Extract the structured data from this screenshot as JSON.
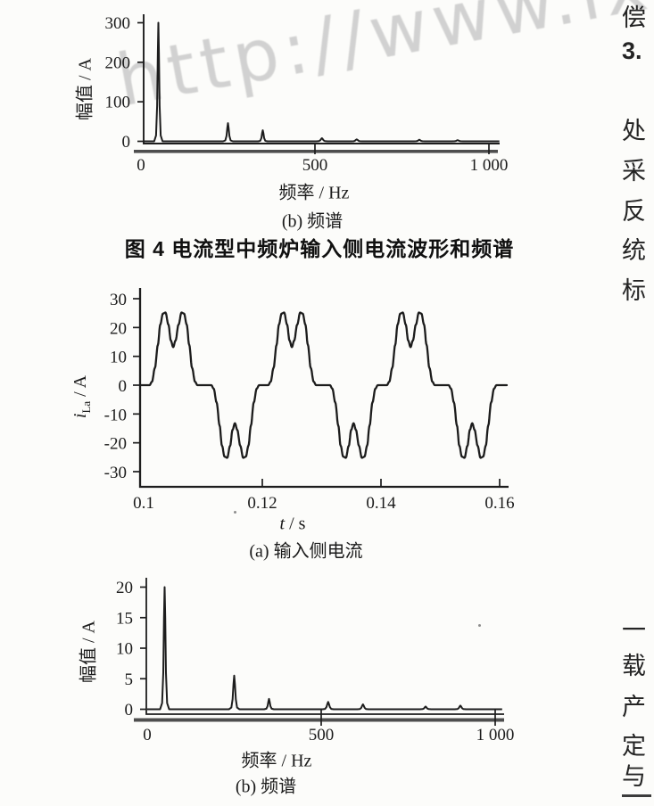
{
  "page": {
    "background": "#fcfcfa",
    "ink": "#1d1d1d"
  },
  "watermark": {
    "text": "http://www.lxu",
    "color": "#c7c7c7"
  },
  "figure4": {
    "title": "图 4  电流型中频炉输入侧电流波形和频谱"
  },
  "right_column": {
    "top_chars": [
      "偿",
      "3.",
      "处",
      "采",
      "反",
      "统",
      "标"
    ],
    "bottom_chars": [
      "一",
      "载",
      "产",
      "定",
      "与"
    ]
  },
  "chart_data": [
    {
      "name": "fig4b-input-current-spectrum",
      "type": "line",
      "subtype": "spectrum",
      "ylabel": "幅值 / A",
      "xlabel": "频率 / Hz",
      "caption": "(b)  频谱",
      "xlim": [
        0,
        1030
      ],
      "ylim": [
        0,
        310
      ],
      "x_ticks": [
        {
          "v": 0,
          "label": "0"
        },
        {
          "v": 500,
          "label": "500"
        },
        {
          "v": 1000,
          "label": "1 000"
        }
      ],
      "y_ticks": [
        {
          "v": 0,
          "label": "0"
        },
        {
          "v": 100,
          "label": "100"
        },
        {
          "v": 200,
          "label": "200"
        },
        {
          "v": 300,
          "label": "300"
        }
      ],
      "peaks": [
        {
          "freq": 50,
          "amp": 300,
          "w": 12
        },
        {
          "freq": 250,
          "amp": 46,
          "w": 14
        },
        {
          "freq": 350,
          "amp": 28,
          "w": 13
        },
        {
          "freq": 520,
          "amp": 8,
          "w": 16
        },
        {
          "freq": 620,
          "amp": 5,
          "w": 16
        },
        {
          "freq": 800,
          "amp": 4,
          "w": 16
        },
        {
          "freq": 910,
          "amp": 3,
          "w": 16
        }
      ]
    },
    {
      "name": "fig5a-input-side-current-waveform",
      "type": "line",
      "subtype": "waveform",
      "ylabel_var": "i",
      "ylabel_sub": "La",
      "ylabel_unit": " / A",
      "xlabel_var": "t",
      "xlabel_unit": " / s",
      "caption": "(a)  输入侧电流",
      "xlim": [
        0.1,
        0.1612
      ],
      "ylim": [
        -30,
        30
      ],
      "x_ticks": [
        {
          "v": 0.1,
          "label": "0.1"
        },
        {
          "v": 0.12,
          "label": "0.12"
        },
        {
          "v": 0.14,
          "label": "0.14"
        },
        {
          "v": 0.16,
          "label": "0.16"
        }
      ],
      "y_ticks": [
        {
          "v": 30,
          "label": "30"
        },
        {
          "v": 20,
          "label": "20"
        },
        {
          "v": 10,
          "label": "10"
        },
        {
          "v": 0,
          "label": "0"
        },
        {
          "v": -10,
          "label": "-10"
        },
        {
          "v": -20,
          "label": "-20"
        },
        {
          "v": -30,
          "label": "-30"
        }
      ],
      "period_s": 0.02,
      "first_lobe_start_s": 0.101,
      "num_periods": 3,
      "peak_amp_A": 25,
      "notch_amp_A": 13,
      "lobe_shape": [
        [
          0,
          0
        ],
        [
          0.02,
          1.2
        ],
        [
          0.045,
          6
        ],
        [
          0.07,
          14
        ],
        [
          0.09,
          21
        ],
        [
          0.112,
          24.8
        ],
        [
          0.134,
          25.2
        ],
        [
          0.159,
          21
        ],
        [
          0.179,
          15.5
        ],
        [
          0.199,
          13.2
        ],
        [
          0.219,
          15.5
        ],
        [
          0.244,
          21
        ],
        [
          0.269,
          25.2
        ],
        [
          0.291,
          24.8
        ],
        [
          0.313,
          21
        ],
        [
          0.334,
          14
        ],
        [
          0.358,
          6
        ],
        [
          0.383,
          1.2
        ],
        [
          0.403,
          0
        ],
        [
          0.42,
          0
        ]
      ],
      "negative_lobe_offset": 0.52
    },
    {
      "name": "fig5b-input-current-spectrum",
      "type": "line",
      "subtype": "spectrum",
      "ylabel": "幅值 / A",
      "xlabel": "频率 / Hz",
      "caption": "(b)  频谱",
      "xlim": [
        0,
        1020
      ],
      "ylim": [
        0,
        20.5
      ],
      "x_ticks": [
        {
          "v": 0,
          "label": "0"
        },
        {
          "v": 500,
          "label": "500"
        },
        {
          "v": 1000,
          "label": "1 000"
        }
      ],
      "y_ticks": [
        {
          "v": 0,
          "label": "0"
        },
        {
          "v": 5,
          "label": "5"
        },
        {
          "v": 10,
          "label": "10"
        },
        {
          "v": 15,
          "label": "15"
        },
        {
          "v": 20,
          "label": "20"
        }
      ],
      "peaks": [
        {
          "freq": 50,
          "amp": 20,
          "w": 13
        },
        {
          "freq": 250,
          "amp": 5.5,
          "w": 15
        },
        {
          "freq": 350,
          "amp": 1.7,
          "w": 14
        },
        {
          "freq": 520,
          "amp": 1.2,
          "w": 16
        },
        {
          "freq": 620,
          "amp": 0.8,
          "w": 16
        },
        {
          "freq": 800,
          "amp": 0.45,
          "w": 16
        },
        {
          "freq": 900,
          "amp": 0.6,
          "w": 16
        }
      ]
    }
  ]
}
